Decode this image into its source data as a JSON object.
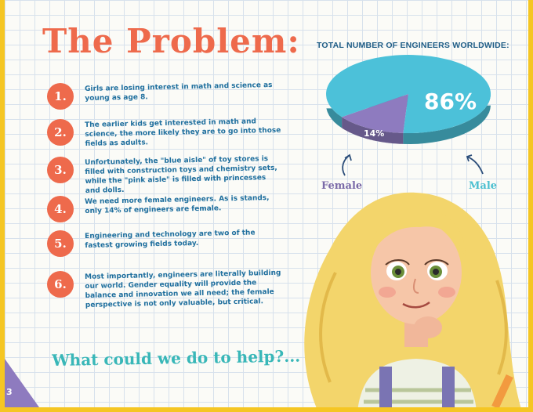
{
  "title": "The Problem:",
  "items": [
    {
      "number": "1.",
      "text": "Girls are losing interest in math and science as young as age 8."
    },
    {
      "number": "2.",
      "text": "The earlier kids get interested in math and science, the more likely they are to go into those fields as adults."
    },
    {
      "number": "3.",
      "text": "Unfortunately, the \"blue aisle\" of toy stores is filled with construction toys and chemistry sets, while the \"pink aisle\" is filled with princesses and dolls."
    },
    {
      "number": "4.",
      "text": "We need more female engineers. As is stands, only 14% of engineers are female."
    },
    {
      "number": "5.",
      "text": "Engineering and technology are two of the fastest growing fields today."
    },
    {
      "number": "6.",
      "text": "Most importantly, engineers are literally building our world. Gender equality will provide the balance and innovation we all need; the female perspective is not only valuable, but critical."
    }
  ],
  "closing_question": "What could we do to help?...",
  "page_number": "3",
  "chart_data": {
    "type": "pie",
    "title": "TOTAL NUMBER OF ENGINEERS WORLDWIDE:",
    "slices": [
      {
        "label": "Male",
        "value": 86,
        "display": "86%",
        "color": "#4cc1d9"
      },
      {
        "label": "Female",
        "value": 14,
        "display": "14%",
        "color": "#8e7bbf"
      }
    ]
  },
  "colors": {
    "accent": "#ee6a4c",
    "text_blue": "#1f6f9e",
    "teal": "#39b7b8",
    "border": "#f5c623",
    "page_tab": "#8e7bbf"
  }
}
